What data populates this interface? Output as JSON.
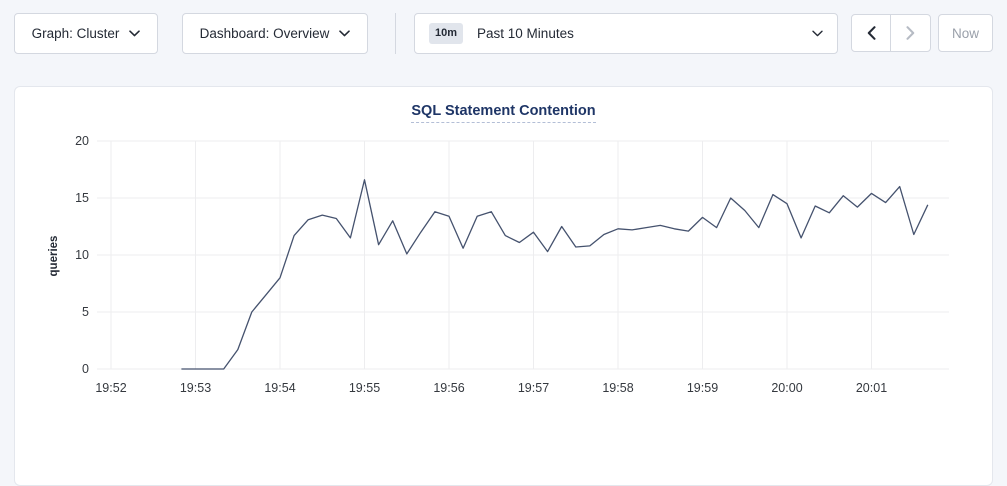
{
  "topbar": {
    "graph_dropdown_label": "Graph: Cluster",
    "dashboard_dropdown_label": "Dashboard: Overview",
    "time_range_badge": "10m",
    "time_range_label": "Past 10 Minutes",
    "now_button_label": "Now"
  },
  "colors": {
    "page_bg": "#f4f6fa",
    "control_border": "#d4d8e0",
    "text_dark": "#242a35",
    "disabled_gray": "#b6bbc4",
    "title_navy": "#1e3566"
  },
  "chart_data": {
    "type": "line",
    "title": "SQL Statement Contention",
    "ylabel": "queries",
    "xlabel": "",
    "ylim": [
      0,
      20
    ],
    "y_ticks": [
      0,
      5,
      10,
      15,
      20
    ],
    "x_ticks": [
      "19:52",
      "19:53",
      "19:54",
      "19:55",
      "19:56",
      "19:57",
      "19:58",
      "19:59",
      "20:00",
      "20:01"
    ],
    "grid": true,
    "legend": "none",
    "line_color": "#45526e",
    "grid_color": "#ededef",
    "series": [
      {
        "name": "queries",
        "start_time": "19:52:50",
        "interval_seconds": 10,
        "values": [
          0,
          0,
          0,
          0,
          1.7,
          5,
          6.5,
          8,
          11.7,
          13.1,
          13.5,
          13.2,
          11.5,
          16.6,
          10.9,
          13,
          10.1,
          12,
          13.8,
          13.4,
          10.6,
          13.4,
          13.8,
          11.7,
          11.1,
          12,
          10.3,
          12.5,
          10.7,
          10.8,
          11.8,
          12.3,
          12.2,
          12.4,
          12.6,
          12.3,
          12.1,
          13.3,
          12.4,
          15,
          13.9,
          12.4,
          15.3,
          14.5,
          11.5,
          14.3,
          13.7,
          15.2,
          14.2,
          15.4,
          14.6,
          16,
          11.8,
          14.4
        ]
      }
    ]
  }
}
